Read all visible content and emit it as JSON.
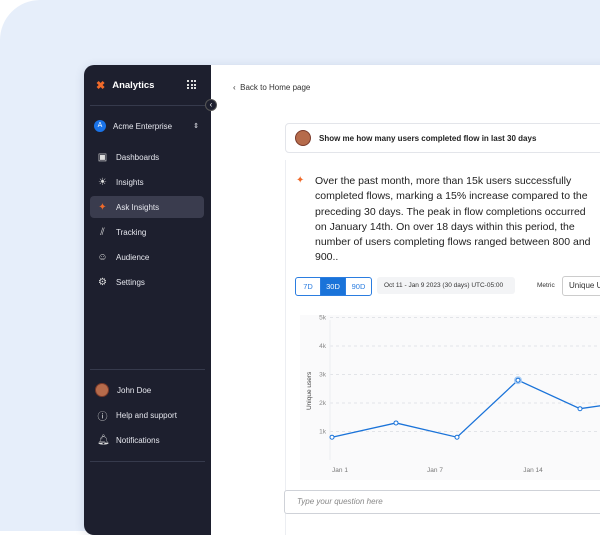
{
  "sidebar": {
    "app_title": "Analytics",
    "org": "Acme Enterprise",
    "org_initial": "A",
    "items": [
      {
        "label": "Dashboards",
        "icon": "clipboard-icon"
      },
      {
        "label": "Insights",
        "icon": "lightbulb-icon"
      },
      {
        "label": "Ask Insights",
        "icon": "magic-wand-icon",
        "active": true
      },
      {
        "label": "Tracking",
        "icon": "chart-icon"
      },
      {
        "label": "Audience",
        "icon": "users-icon"
      },
      {
        "label": "Settings",
        "icon": "gear-icon"
      }
    ],
    "user": "John Doe",
    "help": "Help and support",
    "notifications": "Notifications"
  },
  "main": {
    "back": "Back to Home page",
    "question": "Show me how many users completed flow in last 30 days",
    "answer": "Over the past month, more than 15k users successfully completed flows, marking a 15% increase compared to the preceding 30 days. The peak in flow completions occurred on January 14th. On over 18 days within this period, the number of users completing flows ranged between 800 and 900..",
    "ranges": [
      "7D",
      "30D",
      "90D"
    ],
    "selected_range": "30D",
    "date_range": "Oct 11 -  Jan 9 2023 (30 days) UTC-05:00",
    "metric_label": "Metric",
    "metric_value": "Unique Users",
    "input_placeholder": "Type your question here"
  },
  "chart_data": {
    "type": "line",
    "ylabel": "Unique users",
    "yticks": [
      "1k",
      "2k",
      "3k",
      "4k",
      "5k"
    ],
    "ylim": [
      0,
      5000
    ],
    "xticks": [
      "Jan 1",
      "Jan 7",
      "Jan 14"
    ],
    "x": [
      "Dec 31",
      "Jan 4",
      "Jan 8",
      "Jan 12",
      "Jan 16",
      "Jan 17"
    ],
    "values": [
      800,
      1300,
      800,
      2800,
      1800,
      2000
    ],
    "highlight_index": 3,
    "color": "#1a73d9",
    "grid": true
  }
}
